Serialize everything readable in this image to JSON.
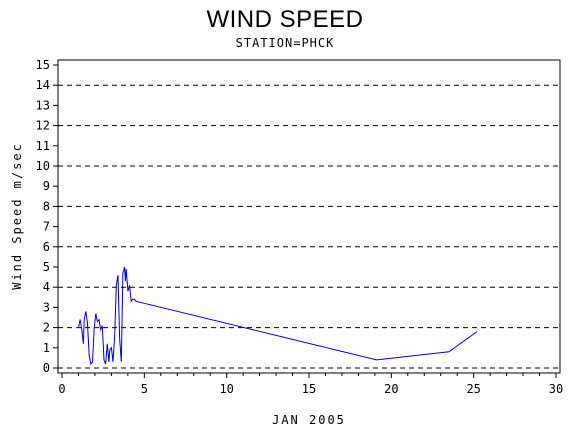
{
  "chart_data": {
    "type": "line",
    "title": "WIND SPEED",
    "subtitle": "STATION=PHCK",
    "xlabel": "JAN 2005",
    "ylabel": "Wind Speed m/sec",
    "xlim": [
      0,
      30
    ],
    "ylim": [
      0,
      15.4
    ],
    "x_ticks": [
      0,
      5,
      10,
      15,
      20,
      25,
      30
    ],
    "y_ticks": [
      0,
      1,
      2,
      3,
      4,
      5,
      6,
      7,
      8,
      9,
      10,
      11,
      12,
      13,
      14,
      15
    ],
    "grid_lines_y": [
      0,
      2,
      4,
      6,
      8,
      10,
      12,
      14
    ],
    "grid": "dashed horizontal",
    "line_color": "#0000cc",
    "series": [
      {
        "x": [
          1.0,
          1.1,
          1.2,
          1.3,
          1.35,
          1.45,
          1.55,
          1.65,
          1.75,
          1.85,
          1.95,
          2.05,
          2.15,
          2.25,
          2.35,
          2.45,
          2.55,
          2.65,
          2.75,
          2.85,
          2.9,
          3.0,
          3.1,
          3.2,
          3.3,
          3.4,
          3.5,
          3.6,
          3.7,
          3.8,
          3.85,
          3.9,
          4.0,
          4.1,
          4.2,
          4.3,
          4.4,
          4.5,
          19.1,
          23.5,
          25.2
        ],
        "y": [
          2.0,
          2.4,
          1.9,
          1.2,
          2.4,
          2.8,
          2.2,
          0.6,
          0.2,
          0.3,
          1.9,
          2.7,
          2.3,
          2.4,
          1.9,
          2.1,
          0.4,
          0.2,
          1.2,
          0.3,
          0.9,
          1.0,
          0.3,
          1.6,
          4.1,
          4.6,
          1.5,
          0.3,
          4.7,
          5.0,
          4.3,
          4.9,
          3.8,
          4.1,
          3.3,
          3.4,
          3.4,
          3.3,
          0.4,
          0.8,
          1.8
        ]
      }
    ]
  }
}
